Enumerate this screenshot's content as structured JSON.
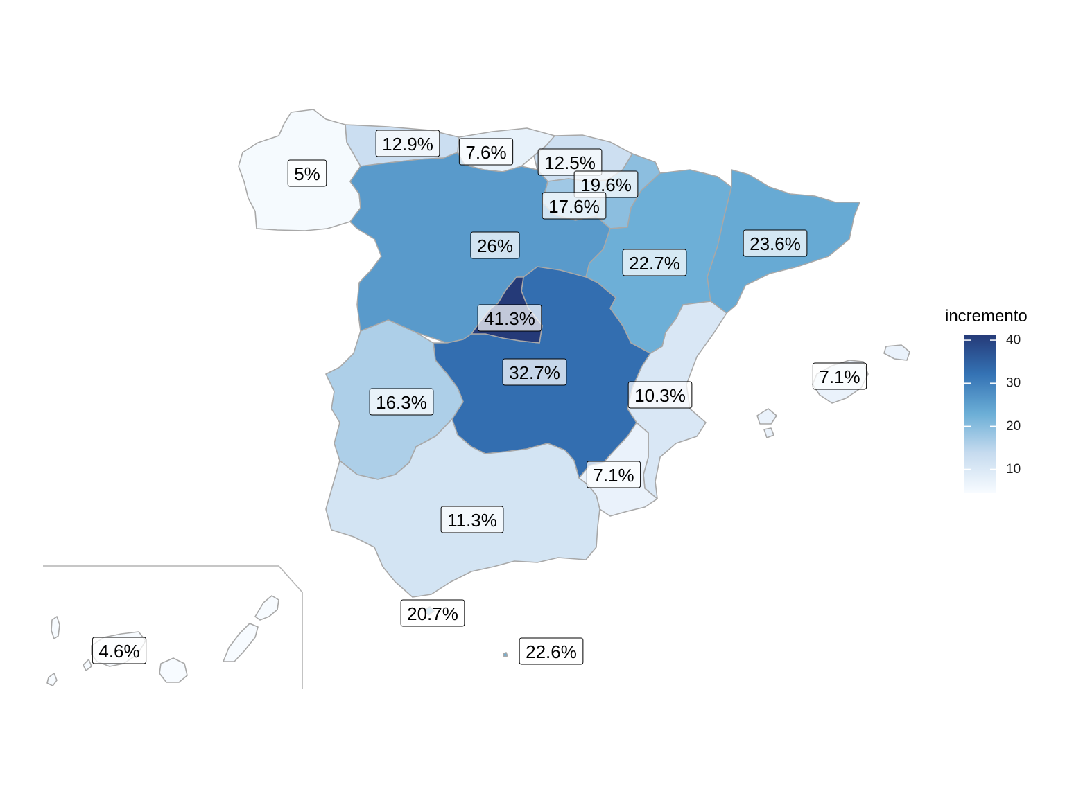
{
  "legend": {
    "title": "incremento",
    "ticks": [
      10,
      20,
      30,
      40
    ],
    "range": [
      4.6,
      41.3
    ],
    "colors": [
      "#f7fbff",
      "#c6dbef",
      "#6baed6",
      "#3472b4",
      "#253a78"
    ]
  },
  "regions": [
    {
      "name": "Galicia",
      "value": 5.0,
      "label": "5%"
    },
    {
      "name": "Asturias",
      "value": 12.9,
      "label": "12.9%"
    },
    {
      "name": "Cantabria",
      "value": 7.6,
      "label": "7.6%"
    },
    {
      "name": "País Vasco",
      "value": 12.5,
      "label": "12.5%"
    },
    {
      "name": "Navarra",
      "value": 19.6,
      "label": "19.6%"
    },
    {
      "name": "La Rioja",
      "value": 17.6,
      "label": "17.6%"
    },
    {
      "name": "Castilla y León",
      "value": 26.0,
      "label": "26%"
    },
    {
      "name": "Aragón",
      "value": 22.7,
      "label": "22.7%"
    },
    {
      "name": "Cataluña",
      "value": 23.6,
      "label": "23.6%"
    },
    {
      "name": "Madrid",
      "value": 41.3,
      "label": "41.3%"
    },
    {
      "name": "Castilla-La Mancha",
      "value": 32.7,
      "label": "32.7%"
    },
    {
      "name": "Extremadura",
      "value": 16.3,
      "label": "16.3%"
    },
    {
      "name": "Comunidad Valenciana",
      "value": 10.3,
      "label": "10.3%"
    },
    {
      "name": "Murcia",
      "value": 7.1,
      "label": "7.1%"
    },
    {
      "name": "Andalucía",
      "value": 11.3,
      "label": "11.3%"
    },
    {
      "name": "Baleares",
      "value": 7.1,
      "label": "7.1%"
    },
    {
      "name": "Ceuta",
      "value": 20.7,
      "label": "20.7%"
    },
    {
      "name": "Melilla",
      "value": 22.6,
      "label": "22.6%"
    },
    {
      "name": "Canarias",
      "value": 4.6,
      "label": "4.6%"
    }
  ]
}
